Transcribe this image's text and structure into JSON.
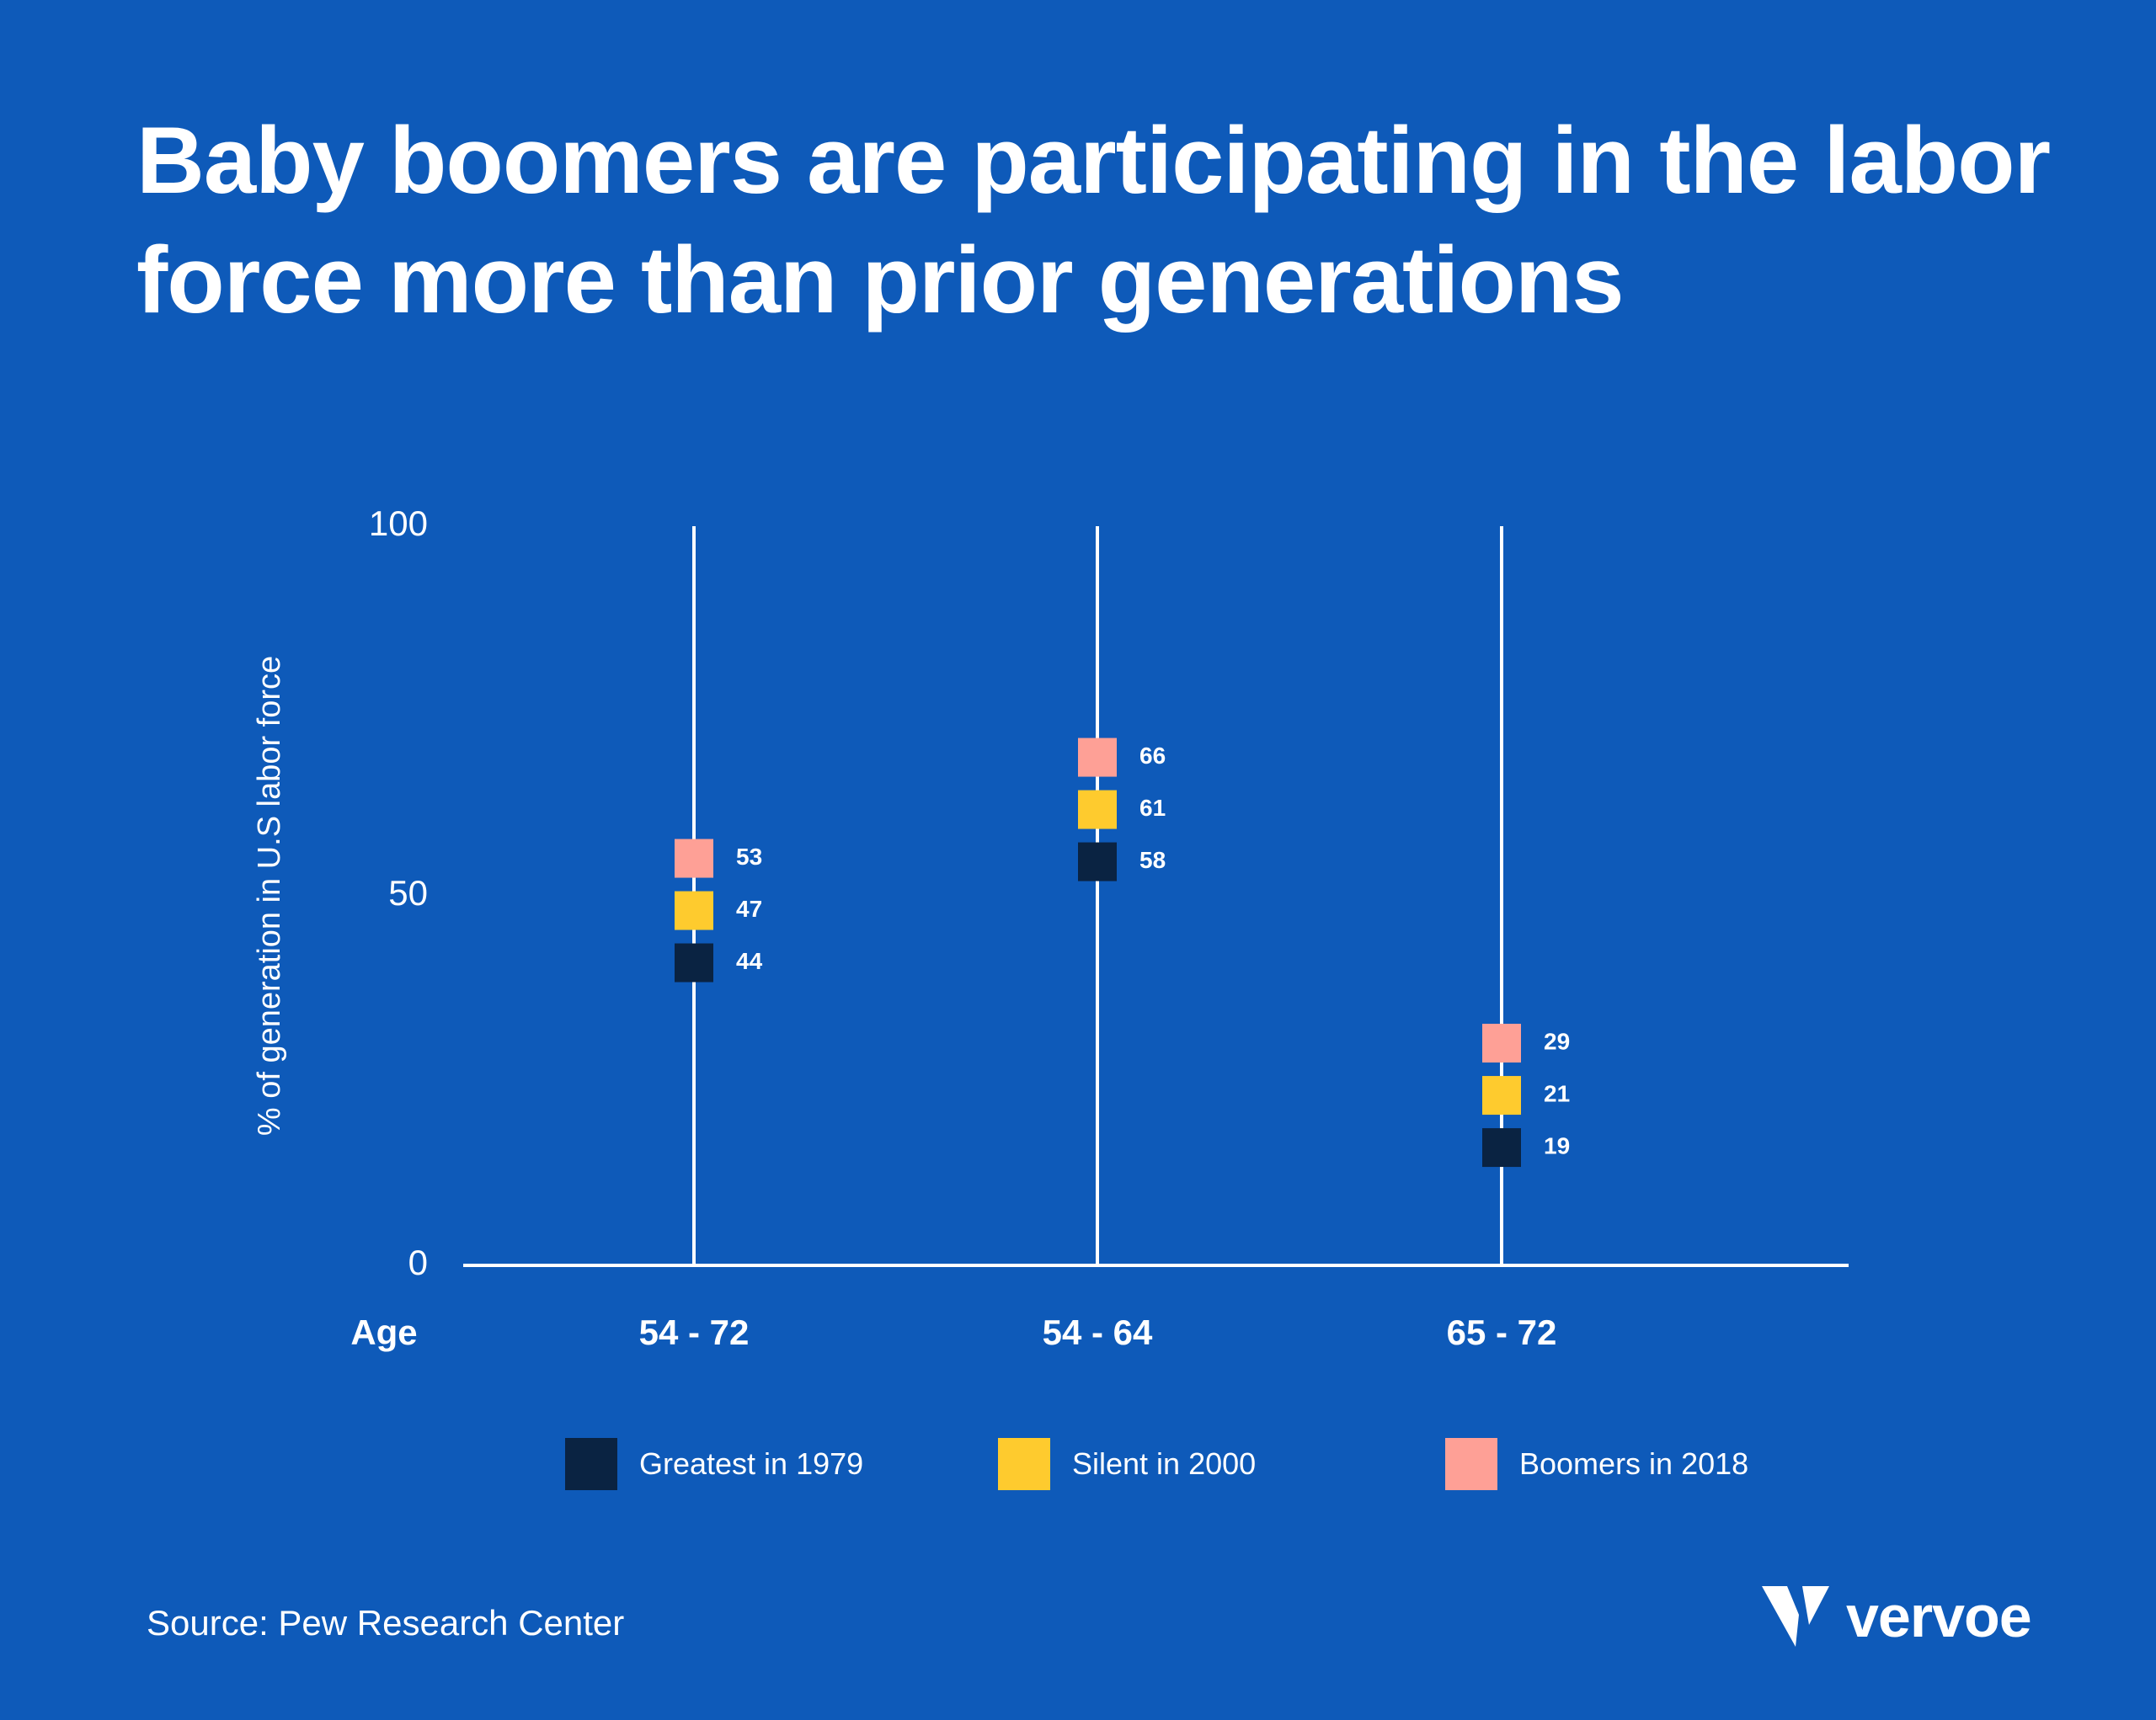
{
  "title": "Baby boomers are participating in the labor force more than prior generations",
  "source": "Source: Pew Research Center",
  "logo": {
    "text": "vervoe",
    "icon": "vervoe-v-logo-icon"
  },
  "colors": {
    "background": "#0e5ab9",
    "Greatest in 1979": "#0a2342",
    "Silent in 2000": "#fecb2e",
    "Boomers in 2018": "#fea096"
  },
  "chart_data": {
    "type": "scatter",
    "title": "Baby boomers are participating in the labor force more than prior generations",
    "xlabel": "Age",
    "ylabel": "% of generation in U.S labor force",
    "categories": [
      "54 - 72",
      "54 - 64",
      "65 - 72"
    ],
    "ylim": [
      0,
      100
    ],
    "yticks": [
      0,
      50,
      100
    ],
    "legend_position": "bottom",
    "grid": false,
    "series": [
      {
        "name": "Greatest in 1979",
        "color": "#0a2342",
        "values": [
          44,
          58,
          19
        ]
      },
      {
        "name": "Silent in 2000",
        "color": "#fecb2e",
        "values": [
          47,
          61,
          21
        ]
      },
      {
        "name": "Boomers in 2018",
        "color": "#fea096",
        "values": [
          53,
          66,
          29
        ]
      }
    ]
  }
}
